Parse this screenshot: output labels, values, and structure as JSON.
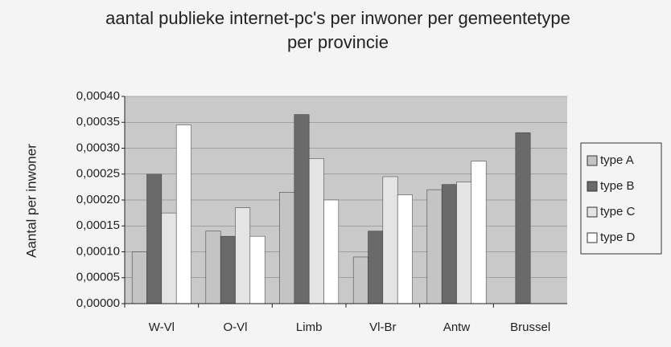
{
  "chart_data": {
    "type": "bar",
    "title": "aantal publieke internet-pc's per inwoner per gemeentetype per provincie",
    "y_label": "Aantal per inwoner",
    "categories": [
      "W-Vl",
      "O-Vl",
      "Limb",
      "Vl-Br",
      "Antw",
      "Brussel"
    ],
    "series": [
      {
        "name": "type A",
        "color": "#c4c4c4",
        "values": [
          0.0001,
          0.00014,
          0.000215,
          9e-05,
          0.00022,
          null
        ]
      },
      {
        "name": "type B",
        "color": "#6a6a6a",
        "values": [
          0.00025,
          0.00013,
          0.000365,
          0.00014,
          0.00023,
          0.00033
        ]
      },
      {
        "name": "type C",
        "color": "#e4e4e4",
        "values": [
          0.000175,
          0.000185,
          0.00028,
          0.000245,
          0.000235,
          null
        ]
      },
      {
        "name": "type D",
        "color": "#ffffff",
        "values": [
          0.000345,
          0.00013,
          0.0002,
          0.00021,
          0.000275,
          null
        ]
      }
    ],
    "ylim": [
      0,
      0.0004
    ],
    "yticks": [
      {
        "value": 0,
        "label": "0,00000"
      },
      {
        "value": 5e-05,
        "label": "0,00005"
      },
      {
        "value": 0.0001,
        "label": "0,00010"
      },
      {
        "value": 0.00015,
        "label": "0,00015"
      },
      {
        "value": 0.0002,
        "label": "0,00020"
      },
      {
        "value": 0.00025,
        "label": "0,00025"
      },
      {
        "value": 0.0003,
        "label": "0,00030"
      },
      {
        "value": 0.00035,
        "label": "0,00035"
      },
      {
        "value": 0.0004,
        "label": "0,00040"
      }
    ],
    "grid": true,
    "legend": "right"
  }
}
